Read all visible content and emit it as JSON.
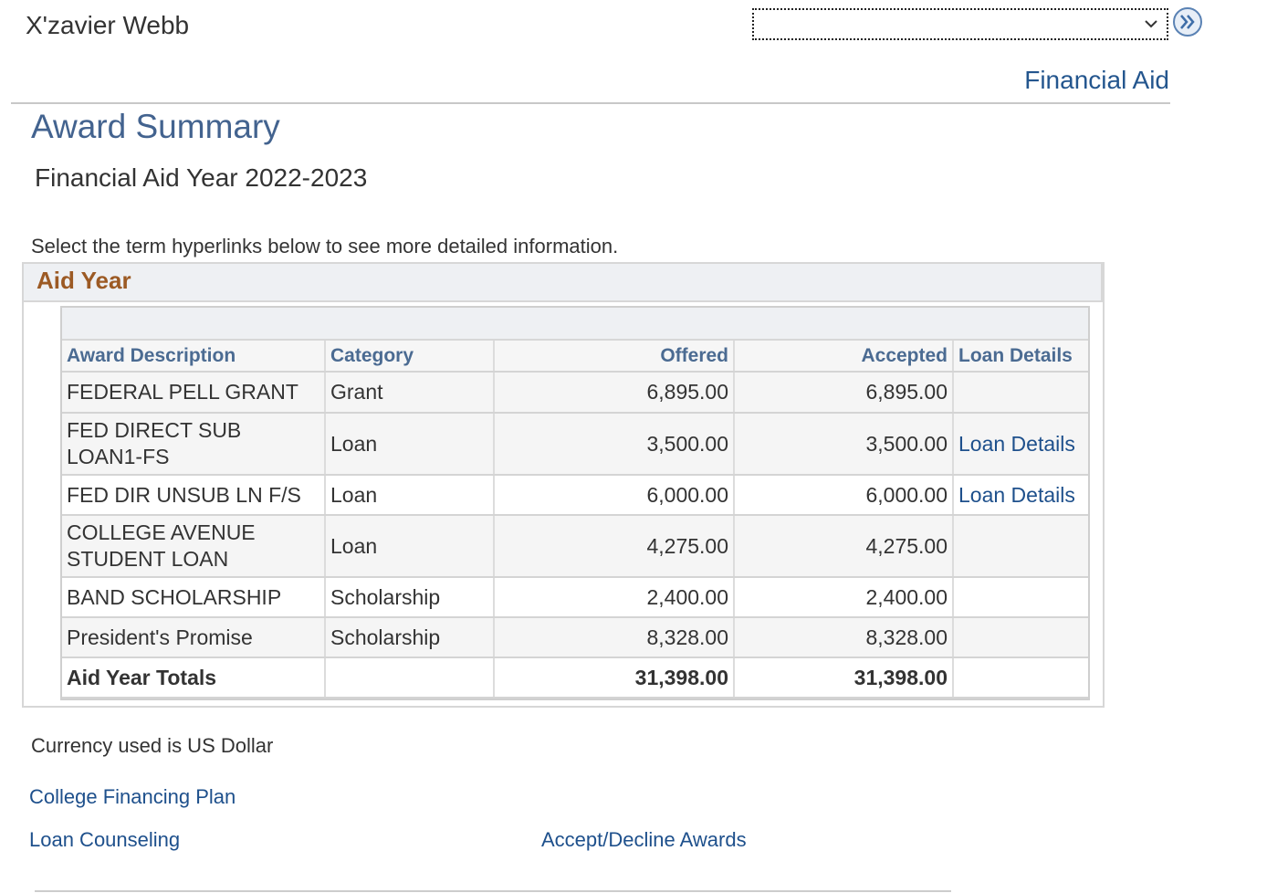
{
  "header": {
    "student_name": "X'zavier Webb",
    "nav_select_value": "",
    "breadcrumb_link": "Financial Aid"
  },
  "page": {
    "title": "Award Summary",
    "aid_year_heading": "Financial Aid Year 2022-2023",
    "instructions": "Select the term hyperlinks below to see more detailed information.",
    "box_title": "Aid Year"
  },
  "table": {
    "headers": {
      "award_description": "Award Description",
      "category": "Category",
      "offered": "Offered",
      "accepted": "Accepted",
      "loan_details": "Loan Details"
    },
    "rows": [
      {
        "description": "FEDERAL PELL GRANT",
        "category": "Grant",
        "offered": "6,895.00",
        "accepted": "6,895.00",
        "loan_details": ""
      },
      {
        "description": "FED DIRECT SUB LOAN1-FS",
        "category": "Loan",
        "offered": "3,500.00",
        "accepted": "3,500.00",
        "loan_details": "Loan Details"
      },
      {
        "description": "FED DIR UNSUB LN F/S",
        "category": "Loan",
        "offered": "6,000.00",
        "accepted": "6,000.00",
        "loan_details": "Loan Details"
      },
      {
        "description": "COLLEGE AVENUE STUDENT LOAN",
        "category": "Loan",
        "offered": "4,275.00",
        "accepted": "4,275.00",
        "loan_details": ""
      },
      {
        "description": "BAND SCHOLARSHIP",
        "category": "Scholarship",
        "offered": "2,400.00",
        "accepted": "2,400.00",
        "loan_details": ""
      },
      {
        "description": "President's Promise",
        "category": "Scholarship",
        "offered": "8,328.00",
        "accepted": "8,328.00",
        "loan_details": ""
      }
    ],
    "totals": {
      "label": "Aid Year Totals",
      "offered": "31,398.00",
      "accepted": "31,398.00"
    }
  },
  "footer": {
    "currency_note": "Currency used is US Dollar",
    "college_financing_plan": "College Financing Plan",
    "loan_counseling": "Loan Counseling",
    "accept_decline_awards": "Accept/Decline Awards"
  },
  "colors": {
    "link": "#1e508c",
    "title": "#43638f",
    "section_title": "#9c5a24",
    "header_text": "#4b6b92"
  }
}
